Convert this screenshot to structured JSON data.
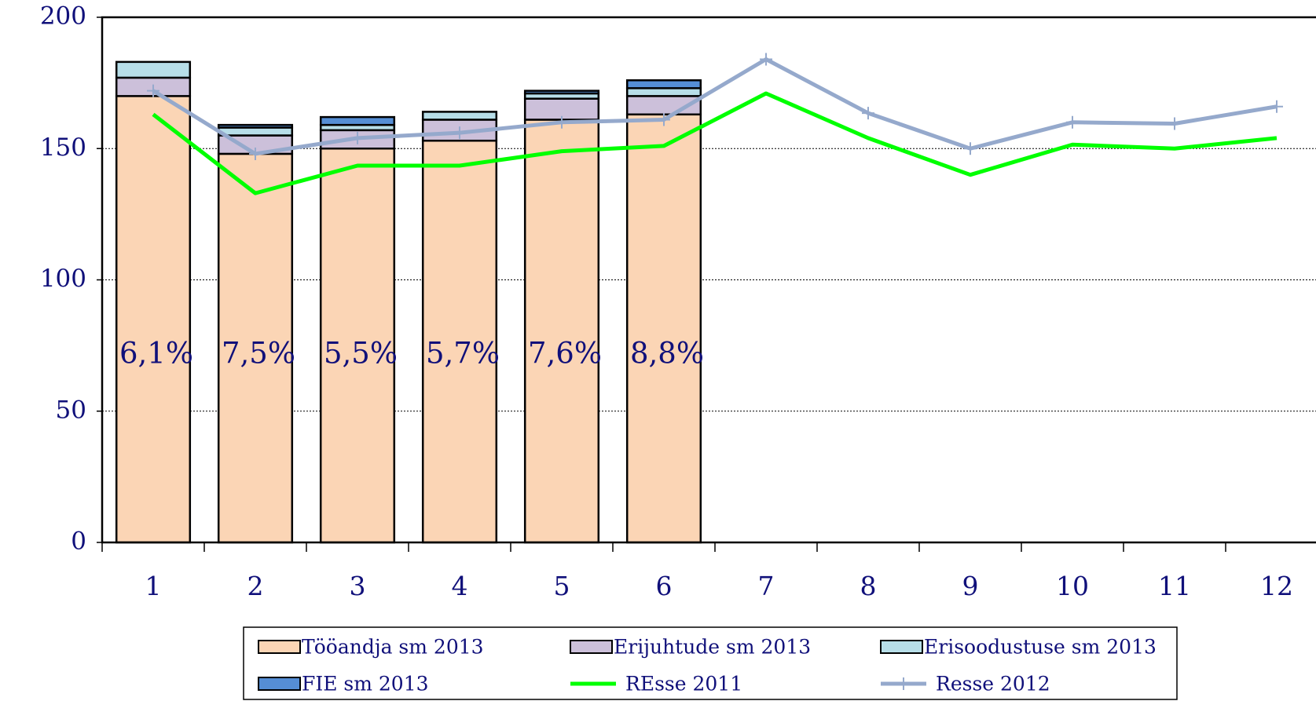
{
  "chart_data": {
    "type": "bar",
    "stacked": true,
    "categories": [
      "1",
      "2",
      "3",
      "4",
      "5",
      "6",
      "7",
      "8",
      "9",
      "10",
      "11",
      "12"
    ],
    "series": [
      {
        "name": "Tööandja sm 2013",
        "type": "bar",
        "color": "#fbd5b5",
        "values": [
          170,
          148,
          150,
          153,
          161,
          163,
          null,
          null,
          null,
          null,
          null,
          null
        ]
      },
      {
        "name": "Erijuhtude sm 2013",
        "type": "bar",
        "color": "#ccc0da",
        "values": [
          7,
          7,
          7,
          8,
          8,
          7,
          null,
          null,
          null,
          null,
          null,
          null
        ]
      },
      {
        "name": "Erisoodustuse sm 2013",
        "type": "bar",
        "color": "#b7dee8",
        "values": [
          6,
          3,
          2,
          3,
          2,
          3,
          null,
          null,
          null,
          null,
          null,
          null
        ]
      },
      {
        "name": "FIE sm 2013",
        "type": "bar",
        "color": "#558ed5",
        "values": [
          0,
          1,
          3,
          0,
          1,
          3,
          null,
          null,
          null,
          null,
          null,
          null
        ]
      },
      {
        "name": "REsse 2011",
        "type": "line",
        "color": "#00ff00",
        "values": [
          163,
          133,
          143.5,
          143.5,
          149,
          151,
          171,
          154,
          140,
          151.5,
          150,
          154
        ]
      },
      {
        "name": "Resse 2012",
        "type": "line",
        "color": "#95a9cc",
        "marker": "+",
        "values": [
          172,
          148,
          154,
          156,
          160,
          161,
          184,
          163.5,
          150,
          160,
          159.5,
          166
        ]
      }
    ],
    "annotations": [
      "6,1%",
      "7,5%",
      "5,5%",
      "5,7%",
      "7,6%",
      "8,8%"
    ],
    "ylim": [
      0,
      200
    ],
    "yticks": [
      0,
      50,
      100,
      150,
      200
    ],
    "grid": true,
    "legend": "bottom"
  }
}
